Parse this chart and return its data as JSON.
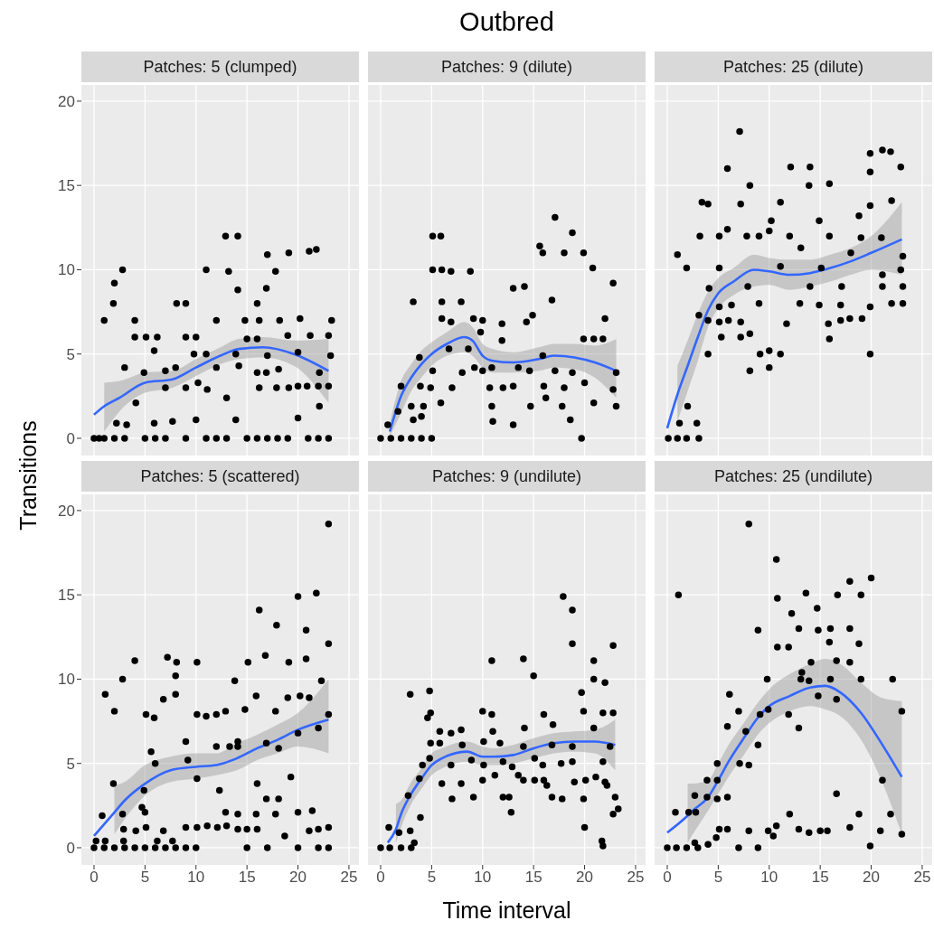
{
  "chart_data": [
    {
      "type": "scatter",
      "ylabel": "Transitions",
      "subtitle": "Patches: 5 (clumped)",
      "xlim": [
        -1.24,
        25.98
      ],
      "ylim": [
        -1.02,
        20.96
      ],
      "xticks": [
        0,
        5,
        10,
        15,
        20,
        25
      ],
      "yticks": [
        0,
        5,
        10,
        15,
        20
      ],
      "grid": true,
      "tick_labels": "y",
      "series": [
        {
          "type": "scatter",
          "marker": "circle",
          "color": "#000000",
          "x": [
            0,
            0.5,
            1,
            2,
            3,
            5,
            6,
            7,
            9,
            11,
            12,
            13,
            15,
            16,
            17,
            18,
            19,
            21,
            22,
            23,
            1,
            2,
            1.9,
            2.8,
            3,
            4,
            4,
            5.1,
            6.2,
            5.9,
            4.9,
            4.1,
            2.2,
            3.2,
            5.9,
            7,
            8,
            8.1,
            9,
            9,
            10,
            9.8,
            7,
            9,
            10.2,
            7.7,
            10,
            11,
            12,
            11,
            12,
            11.1,
            13,
            12.9,
            14.1,
            13.2,
            14.1,
            13.9,
            14.2,
            13.9,
            14.8,
            15,
            16,
            16,
            16.2,
            16.2,
            16,
            16.9,
            17,
            17,
            16.9,
            17.8,
            18.1,
            17.9,
            18.2,
            19.1,
            19,
            19.1,
            20,
            20,
            20,
            20.2,
            21.1,
            21.8,
            21.2,
            20.9,
            22.1,
            22,
            22.1,
            23,
            23,
            23.3,
            23.2
          ],
          "values": [
            0,
            0,
            0,
            0,
            0,
            0,
            0,
            0,
            0,
            0,
            0,
            0,
            0,
            0,
            0,
            0,
            0,
            0,
            0,
            0,
            7,
            9.2,
            8,
            10,
            4.2,
            7,
            6,
            6,
            6,
            5.2,
            3.9,
            2.1,
            0.9,
            0.8,
            0.9,
            4,
            4.2,
            8,
            8,
            6,
            6,
            5,
            3,
            3,
            3.3,
            1,
            1.1,
            10,
            7,
            5,
            4.2,
            2.9,
            2.4,
            12,
            12,
            9.9,
            8.8,
            5,
            4.3,
            1.1,
            7,
            5.9,
            8,
            5.9,
            7,
            3,
            3.9,
            3.9,
            10.9,
            4.9,
            8.9,
            9.9,
            4.1,
            3,
            7,
            11,
            6.1,
            3,
            5.1,
            3.1,
            1.2,
            7.1,
            11.1,
            11.2,
            6.1,
            3.1,
            3.9,
            3.1,
            1.9,
            3.1,
            6.1,
            7,
            4.9
          ]
        },
        {
          "type": "line",
          "color": "#3366ff",
          "x": [
            0,
            1,
            2.5,
            5,
            7.7,
            10,
            12.4,
            14.2,
            16.6,
            19.6,
            23
          ],
          "values": [
            1.4,
            1.9,
            2.4,
            3.3,
            3.5,
            4.2,
            4.9,
            5.3,
            5.4,
            5.0,
            4.0
          ],
          "lower": [
            null,
            0.4,
            1.6,
            2.7,
            3.0,
            3.7,
            4.4,
            4.7,
            4.8,
            4.3,
            2.1
          ],
          "upper": [
            null,
            3.3,
            3.4,
            3.9,
            4.0,
            4.7,
            5.4,
            5.9,
            6.0,
            5.8,
            5.9
          ]
        }
      ]
    },
    {
      "type": "scatter",
      "title": "Outbred",
      "subtitle": "Patches: 9 (dilute)",
      "xlim": [
        -1.24,
        25.98
      ],
      "ylim": [
        -1.02,
        20.96
      ],
      "xticks": [
        0,
        5,
        10,
        15,
        20,
        25
      ],
      "yticks": [
        0,
        5,
        10,
        15,
        20
      ],
      "grid": true,
      "tick_labels": false,
      "series": [
        {
          "type": "scatter",
          "marker": "circle",
          "color": "#000000",
          "x": [
            0,
            1,
            2,
            3,
            4,
            5,
            19.7,
            0.7,
            1.7,
            2,
            3,
            3.2,
            4,
            4.2,
            3.9,
            3.8,
            3.2,
            5.1,
            5.9,
            5.1,
            6,
            6.9,
            6,
            6,
            6.9,
            4.9,
            5.1,
            5.9,
            6.7,
            7,
            7.9,
            8.8,
            9.1,
            10,
            9.8,
            8.6,
            8,
            9.2,
            10,
            10.9,
            10.7,
            10.9,
            11,
            11.9,
            11.9,
            12,
            13,
            14.1,
            13,
            13,
            13.5,
            14.3,
            14.9,
            14.6,
            14.7,
            15.6,
            15.9,
            15.9,
            16,
            16.2,
            16.8,
            17.1,
            17.1,
            17.8,
            18,
            18,
            18.8,
            18.6,
            18.8,
            19.9,
            20.8,
            19.9,
            20,
            20.9,
            20.9,
            21.8,
            22,
            22.8,
            22.8,
            23.1,
            23.1
          ],
          "values": [
            0,
            0,
            0,
            0,
            0,
            0,
            0,
            0.8,
            1.6,
            3.1,
            1.9,
            1.1,
            1.3,
            1.9,
            3.1,
            4.8,
            8.1,
            12,
            12,
            10,
            10,
            9.9,
            8.1,
            7.1,
            6.9,
            3,
            4,
            2.1,
            5.3,
            3,
            8.1,
            9.9,
            7.1,
            7,
            6.3,
            5.3,
            3.9,
            4.2,
            4,
            4.2,
            3,
            1.9,
            1,
            6.8,
            5.8,
            3,
            8.9,
            9,
            3.1,
            0.8,
            4.2,
            6.9,
            7.3,
            4,
            1.9,
            11.4,
            11,
            4.9,
            3.1,
            2.4,
            8.2,
            13.1,
            4,
            1.9,
            11,
            3,
            12.2,
            1.1,
            3.9,
            11,
            10.1,
            5.9,
            3.3,
            2.1,
            5.9,
            5.9,
            7.1,
            9.2,
            2.9,
            3.9,
            1.9
          ]
        },
        {
          "type": "line",
          "color": "#3366ff",
          "x": [
            0.9,
            2,
            3,
            4,
            5,
            6.5,
            8.2,
            9,
            10,
            11,
            13,
            15.5,
            17,
            19,
            21,
            23.1
          ],
          "values": [
            0.4,
            2.5,
            3.6,
            4.4,
            5.0,
            5.6,
            6.0,
            5.8,
            4.9,
            4.6,
            4.5,
            4.7,
            4.9,
            4.8,
            4.5,
            4.0
          ],
          "lower": [
            0.1,
            1.5,
            2.8,
            3.6,
            4.3,
            4.9,
            5.1,
            4.9,
            4.2,
            3.9,
            3.9,
            4.0,
            4.2,
            4.1,
            3.6,
            2.4
          ],
          "upper": [
            0.9,
            3.4,
            4.4,
            5.2,
            5.7,
            6.3,
            6.9,
            6.6,
            5.6,
            5.3,
            5.1,
            5.4,
            5.6,
            5.6,
            5.5,
            5.9
          ]
        }
      ]
    },
    {
      "type": "scatter",
      "subtitle": "Patches: 25 (dilute)",
      "xlim": [
        -1.24,
        25.98
      ],
      "ylim": [
        -1.02,
        20.96
      ],
      "xticks": [
        0,
        5,
        10,
        15,
        20,
        25
      ],
      "yticks": [
        0,
        5,
        10,
        15,
        20
      ],
      "grid": true,
      "tick_labels": false,
      "series": [
        {
          "type": "scatter",
          "marker": "circle",
          "color": "#000000",
          "x": [
            0.1,
            1,
            1.9,
            3.1,
            1.2,
            2.9,
            2,
            1,
            1.9,
            3.4,
            4,
            3.2,
            3.1,
            4,
            4,
            4.1,
            5.1,
            5.9,
            5.9,
            5.1,
            5.1,
            5.1,
            5.3,
            6,
            6.3,
            7.1,
            7.2,
            7.8,
            7.9,
            7.2,
            7.2,
            8.1,
            8.1,
            8.1,
            9,
            9,
            9.1,
            10,
            10,
            11.1,
            10,
            10.2,
            11.1,
            11.7,
            12.1,
            12,
            11.1,
            13,
            13.1,
            14,
            13.9,
            14,
            14.9,
            14.9,
            15.1,
            15.9,
            15.9,
            15.8,
            15.9,
            17,
            17,
            17.1,
            17.9,
            18.8,
            19,
            19.1,
            19.9,
            21.1,
            21.9,
            19.9,
            19.9,
            19.9,
            19.9,
            21,
            21.1,
            21.1,
            22,
            22.9,
            22,
            23.1,
            23.1,
            23.1,
            22.9,
            18
          ],
          "values": [
            0,
            0,
            0,
            0,
            0.9,
            0.9,
            1.9,
            10.9,
            10.1,
            14,
            13.9,
            12,
            7.3,
            7,
            5,
            8.9,
            12,
            12.4,
            16,
            10.1,
            7.8,
            6.9,
            6,
            7,
            7.9,
            18.2,
            13.9,
            12,
            9,
            6.9,
            6,
            6.2,
            4,
            15,
            12,
            8,
            5,
            5.2,
            4.2,
            5,
            12.3,
            12.9,
            14,
            6.8,
            16.1,
            12,
            10.2,
            8,
            11.3,
            16.1,
            15,
            9,
            12.9,
            7.9,
            10.1,
            15.1,
            12,
            6.8,
            5.9,
            7.9,
            7,
            9,
            7.1,
            13.2,
            11.9,
            7.1,
            16.9,
            17.1,
            17,
            15.8,
            13.8,
            7.8,
            5,
            11.9,
            9.7,
            9,
            14.1,
            16.1,
            8,
            8,
            10.8,
            9,
            10,
            11
          ]
        },
        {
          "type": "line",
          "color": "#3366ff",
          "x": [
            0,
            1,
            2,
            3,
            4,
            5,
            6.5,
            8.5,
            10,
            12,
            14,
            16,
            18,
            20,
            23
          ],
          "values": [
            0.6,
            2.6,
            4.3,
            6.0,
            7.6,
            8.6,
            9.3,
            10.0,
            9.9,
            9.7,
            9.8,
            10.1,
            10.5,
            11.0,
            11.8
          ],
          "lower": [
            null,
            1.0,
            2.8,
            4.6,
            6.6,
            7.7,
            8.5,
            9.0,
            9.1,
            8.8,
            9.0,
            9.3,
            9.7,
            10.0,
            9.7
          ],
          "upper": [
            null,
            4.3,
            5.8,
            7.4,
            8.7,
            9.5,
            10.1,
            10.9,
            10.7,
            10.6,
            10.6,
            10.9,
            11.3,
            12.0,
            14.0
          ]
        }
      ]
    },
    {
      "type": "scatter",
      "subtitle": "Patches: 5 (scattered)",
      "xlim": [
        -1.24,
        25.98
      ],
      "ylim": [
        -1.02,
        20.96
      ],
      "xticks": [
        0,
        5,
        10,
        15,
        20,
        25
      ],
      "yticks": [
        0,
        5,
        10,
        15,
        20
      ],
      "grid": true,
      "series": [
        {
          "type": "scatter",
          "marker": "circle",
          "color": "#000000",
          "x": [
            0,
            1,
            2,
            3,
            4,
            5,
            6,
            7,
            8,
            9,
            10,
            15,
            17,
            20,
            22,
            23,
            0.2,
            1.1,
            2.9,
            6.2,
            7.7,
            0.8,
            1.9,
            2.8,
            2.9,
            4.1,
            5.1,
            6.8,
            9,
            10.1,
            11.1,
            12.1,
            13,
            14.1,
            15,
            16,
            18.7,
            21.1,
            22,
            23,
            1.1,
            2,
            2.8,
            4,
            5.1,
            5.9,
            6.8,
            7.2,
            8,
            8,
            8.1,
            9,
            10.1,
            10.1,
            11,
            12,
            12.9,
            13.8,
            14.1,
            14.8,
            15.1,
            16.2,
            15.9,
            16.8,
            17.8,
            17.9,
            19.1,
            19,
            20,
            20.8,
            20.8,
            20.2,
            21.1,
            21.8,
            22.3,
            23,
            23,
            23,
            5.6,
            6,
            4.9,
            4.7,
            9.2,
            10.1,
            12,
            12.3,
            13.3,
            14.1,
            16,
            16.9,
            16.9,
            18.1,
            18.1,
            19.3,
            20,
            17.8,
            20,
            21.4,
            22,
            12.9,
            14.1,
            15.9,
            5
          ],
          "values": [
            0,
            0,
            0,
            0,
            0,
            0,
            0,
            0,
            0,
            0,
            0,
            0,
            0,
            0,
            0,
            0,
            0.4,
            0.4,
            0.4,
            0.4,
            0.4,
            1.9,
            3.8,
            2,
            1.1,
            1,
            1.2,
            1,
            1.2,
            1.2,
            1.3,
            1.2,
            1.3,
            1.1,
            1.1,
            1.1,
            0.7,
            1,
            1.1,
            1.2,
            9.1,
            8.1,
            10,
            11.1,
            7.9,
            7.7,
            8.8,
            11.3,
            10.2,
            9.1,
            11,
            6.3,
            11,
            7.9,
            7.8,
            7.9,
            8.1,
            9.9,
            6.3,
            8.2,
            11,
            14.1,
            9,
            11.4,
            8.1,
            13.2,
            11,
            8.9,
            14.9,
            12.9,
            11.2,
            9,
            8.9,
            15.1,
            9.9,
            19.2,
            12.1,
            7.9,
            5.7,
            5,
            3.4,
            2.4,
            5.2,
            4.1,
            6,
            3.4,
            6,
            6,
            3.8,
            2.9,
            6.2,
            5.9,
            2.9,
            4.2,
            6.8,
            2,
            2.1,
            2.2,
            7.1,
            2.1,
            2,
            2,
            2.1
          ]
        },
        {
          "type": "line",
          "color": "#3366ff",
          "x": [
            0,
            2,
            3,
            5,
            7.5,
            10,
            12,
            14,
            16,
            18,
            20,
            23
          ],
          "values": [
            0.7,
            2.1,
            2.8,
            3.8,
            4.6,
            4.8,
            4.9,
            5.3,
            5.9,
            6.4,
            7.0,
            7.6
          ],
          "lower": [
            null,
            0.8,
            1.7,
            3.1,
            3.9,
            4.1,
            4.3,
            4.6,
            5.2,
            5.6,
            6.0,
            5.6
          ],
          "upper": [
            null,
            3.7,
            3.9,
            4.9,
            5.4,
            5.6,
            5.6,
            6.2,
            6.7,
            7.3,
            8.0,
            10.0
          ]
        }
      ]
    },
    {
      "type": "scatter",
      "xlabel": "Time interval",
      "subtitle": "Patches: 9 (undilute)",
      "xlim": [
        -1.24,
        25.98
      ],
      "ylim": [
        -1.02,
        20.96
      ],
      "xticks": [
        0,
        5,
        10,
        15,
        20,
        25
      ],
      "yticks": [
        0,
        5,
        10,
        15,
        20
      ],
      "grid": true,
      "tick_labels": "x",
      "series": [
        {
          "type": "scatter",
          "marker": "circle",
          "color": "#000000",
          "x": [
            0,
            0.9,
            2,
            3,
            3.3,
            21.8,
            21.7,
            0.8,
            1.8,
            2.9,
            3.9,
            2.7,
            3.8,
            4.1,
            4.8,
            2.9,
            4.8,
            4.9,
            4.6,
            4.9,
            5.8,
            5.8,
            6,
            6.9,
            6.9,
            7,
            7.9,
            8,
            7.9,
            8.9,
            9.1,
            10,
            10.1,
            10.1,
            10,
            10.9,
            10.9,
            11,
            11.2,
            11.7,
            12,
            12.6,
            12.8,
            12,
            12.9,
            13.5,
            14,
            14,
            14.1,
            14,
            15,
            15.1,
            15.1,
            15.9,
            16,
            16,
            16.3,
            16.8,
            16.9,
            16.8,
            17.7,
            17.8,
            17.9,
            18.8,
            18.8,
            18.8,
            19,
            18.8,
            19.7,
            19.9,
            19.9,
            20,
            20.1,
            20.9,
            20.9,
            21.1,
            21.8,
            21.8,
            22,
            22,
            22.2,
            22.8,
            22.8,
            23,
            22.8,
            23.3,
            22.5,
            20.9
          ],
          "values": [
            0,
            0,
            0,
            0,
            0.3,
            0.1,
            0.4,
            1.2,
            0.9,
            1,
            1.8,
            3.1,
            4.1,
            4.9,
            5.3,
            9.1,
            9.3,
            8,
            7.7,
            6.2,
            6.9,
            6.2,
            3.8,
            6.8,
            4.9,
            2.9,
            7,
            6.1,
            3.8,
            5.2,
            3,
            8.1,
            6.3,
            4.9,
            4,
            11.1,
            7.9,
            6.9,
            4.3,
            6.2,
            3,
            3,
            2.1,
            5.1,
            4.8,
            4.3,
            11.2,
            4,
            7.1,
            6,
            10.2,
            5.3,
            4,
            4.9,
            7.9,
            4,
            3.7,
            3,
            7.3,
            6.1,
            5,
            2.9,
            14.9,
            14.1,
            12.1,
            5.1,
            3.9,
            6,
            9.2,
            8.1,
            2.9,
            1.2,
            4,
            11.1,
            10,
            4.2,
            8,
            5.1,
            9.8,
            3.9,
            3.7,
            12,
            8,
            3,
            2,
            2.3,
            6,
            7.1
          ]
        },
        {
          "type": "line",
          "color": "#3366ff",
          "x": [
            0.7,
            1.5,
            2,
            3,
            4,
            5,
            6,
            8.5,
            10,
            11,
            13,
            15,
            17,
            19,
            21,
            23
          ],
          "values": [
            0.3,
            1.1,
            2.0,
            3.2,
            4.1,
            4.9,
            5.3,
            5.7,
            5.4,
            5.4,
            5.5,
            5.9,
            6.2,
            6.3,
            6.3,
            6.1
          ],
          "lower": [
            null,
            0.3,
            1.2,
            2.6,
            3.5,
            4.3,
            4.7,
            5.1,
            4.9,
            4.9,
            5.0,
            5.3,
            5.6,
            5.7,
            5.6,
            4.6
          ],
          "upper": [
            null,
            2.6,
            2.8,
            3.9,
            4.7,
            5.6,
            5.9,
            6.3,
            6.0,
            5.9,
            6.1,
            6.5,
            6.8,
            6.9,
            7.0,
            7.6
          ]
        }
      ]
    },
    {
      "type": "scatter",
      "subtitle": "Patches: 25 (undilute)",
      "xlim": [
        -1.24,
        25.98
      ],
      "ylim": [
        -1.02,
        20.96
      ],
      "xticks": [
        0,
        5,
        10,
        15,
        20,
        25
      ],
      "yticks": [
        0,
        5,
        10,
        15,
        20
      ],
      "grid": true,
      "tick_labels": "x",
      "series": [
        {
          "type": "scatter",
          "marker": "circle",
          "color": "#000000",
          "x": [
            0,
            0.9,
            1.9,
            2.7,
            3,
            4,
            7,
            8.9,
            19.9,
            0.8,
            1.1,
            2.1,
            2.8,
            2.7,
            3.9,
            3.9,
            4.9,
            4.9,
            4.9,
            5.1,
            4.8,
            5.9,
            5.9,
            6.1,
            5.9,
            7,
            7.1,
            7.7,
            8,
            8,
            8,
            8.9,
            9.1,
            8.9,
            9.8,
            9.9,
            9.9,
            10.4,
            10.7,
            10.7,
            10.8,
            10.8,
            11.9,
            11.9,
            12.2,
            12,
            12.9,
            12.9,
            12.9,
            13.1,
            13.2,
            13.9,
            13.9,
            13.6,
            14.1,
            14.7,
            14.8,
            14.8,
            15,
            15.7,
            16,
            15.9,
            16,
            16.6,
            16.6,
            16.7,
            16.6,
            17.9,
            17.9,
            17.9,
            17.9,
            18.8,
            19,
            19,
            18.8,
            20,
            20.9,
            21.1,
            21.9,
            22.1,
            23,
            23
          ],
          "values": [
            0,
            0,
            0,
            0.3,
            0,
            0.2,
            0,
            0,
            0.1,
            2.1,
            15,
            2.1,
            2.1,
            3.1,
            4,
            3,
            5,
            4,
            2.9,
            1.1,
            0.6,
            3,
            1.1,
            9.1,
            7.2,
            8.1,
            5,
            6.9,
            4.9,
            19.2,
            1,
            6.1,
            7.9,
            12.9,
            10,
            8.2,
            1,
            0.7,
            1.3,
            17.1,
            14.8,
            11.9,
            11.9,
            7.9,
            13.9,
            2,
            7.1,
            1.1,
            13,
            10,
            10.4,
            9.9,
            0.9,
            15.1,
            11,
            14.2,
            12.9,
            9,
            1,
            1,
            13,
            12.2,
            10,
            11.1,
            8.8,
            15,
            3.2,
            15.8,
            13,
            11,
            1.2,
            12.1,
            10,
            15,
            2,
            16,
            1,
            4,
            2,
            10,
            8.1,
            0.8
          ]
        },
        {
          "type": "line",
          "color": "#3366ff",
          "x": [
            0,
            2,
            2.5,
            4,
            5,
            6,
            7.5,
            9,
            10,
            12,
            14,
            15.5,
            17,
            19,
            21,
            23
          ],
          "values": [
            0.9,
            1.9,
            2.2,
            3,
            4,
            5.1,
            6.5,
            7.8,
            8.4,
            9.0,
            9.5,
            9.6,
            9.2,
            8.0,
            6.2,
            4.2
          ],
          "lower": [
            null,
            0.3,
            0.8,
            2.2,
            3.2,
            4.2,
            5.5,
            6.8,
            7.4,
            8.1,
            8.4,
            8.2,
            7.8,
            6.4,
            4.0,
            0.8
          ],
          "upper": [
            null,
            3.8,
            3.8,
            4.0,
            5.0,
            6.1,
            7.4,
            8.7,
            9.4,
            10.3,
            10.9,
            11.2,
            10.9,
            9.8,
            8.9,
            8.7
          ]
        }
      ]
    }
  ]
}
